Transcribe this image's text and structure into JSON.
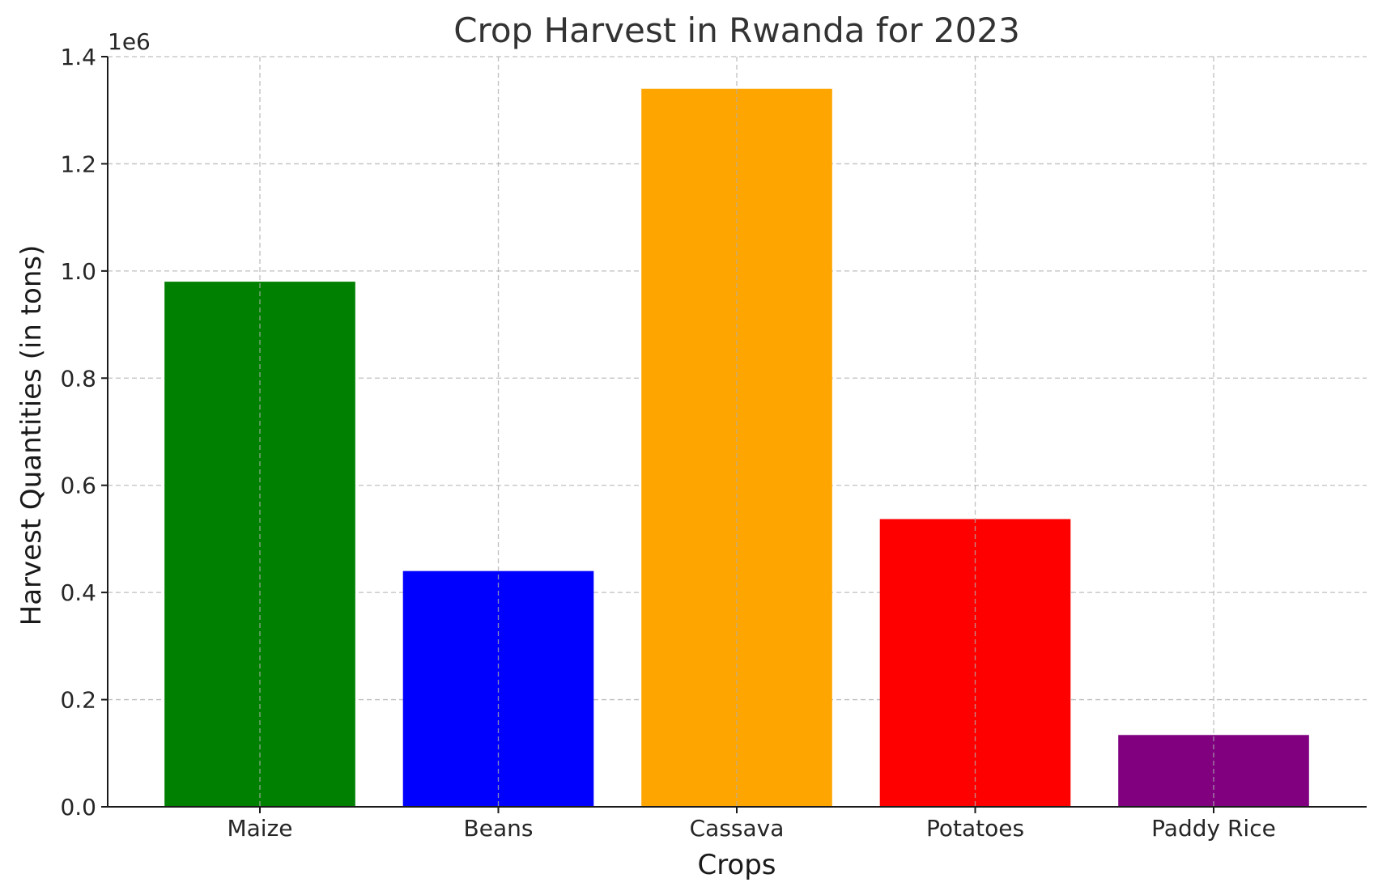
{
  "chart_data": {
    "type": "bar",
    "title": "Crop Harvest in Rwanda for 2023",
    "xlabel": "Crops",
    "ylabel": "Harvest Quantities (in tons)",
    "y_scale_label": "1e6",
    "categories": [
      "Maize",
      "Beans",
      "Cassava",
      "Potatoes",
      "Paddy Rice"
    ],
    "values": [
      980000,
      440000,
      1340000,
      537000,
      134000
    ],
    "colors": [
      "#008000",
      "#0000ff",
      "#ffa500",
      "#ff0000",
      "#800080"
    ],
    "ylim": [
      0,
      1400000
    ],
    "yticks": [
      0,
      200000,
      400000,
      600000,
      800000,
      1000000,
      1200000,
      1400000
    ],
    "ytick_labels": [
      "0.0",
      "0.2",
      "0.4",
      "0.6",
      "0.8",
      "1.0",
      "1.2",
      "1.4"
    ],
    "grid": true
  }
}
